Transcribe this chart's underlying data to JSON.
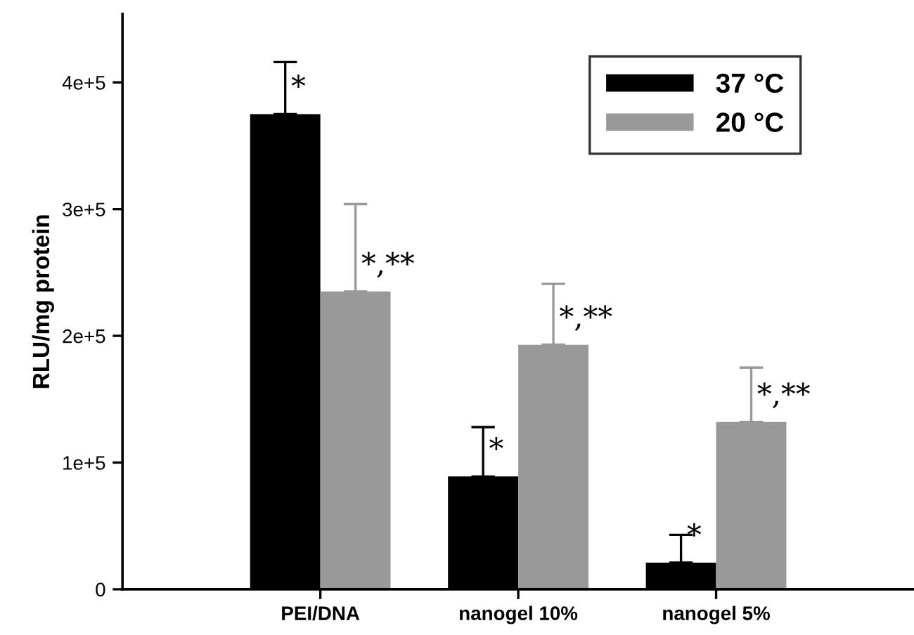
{
  "chart_data": {
    "type": "bar",
    "ylabel": "RLU/mg protein",
    "categories": [
      "PEI/DNA",
      "nanogel 10%",
      "nanogel 5%"
    ],
    "series": [
      {
        "name": "37 °C",
        "color": "#000000",
        "values": [
          375000,
          89000,
          21000
        ],
        "errors": [
          [
            375000,
            416000
          ],
          [
            89000,
            128000
          ],
          [
            21000,
            43000
          ]
        ]
      },
      {
        "name": "20 °C",
        "color": "#999999",
        "values": [
          235000,
          193000,
          132000
        ],
        "errors": [
          [
            235000,
            304000
          ],
          [
            193000,
            241000
          ],
          [
            132000,
            175000
          ]
        ]
      }
    ],
    "ylim": [
      0,
      454000
    ],
    "yticks": [
      {
        "value": 0,
        "label": "0"
      },
      {
        "value": 100000,
        "label": "1e+5"
      },
      {
        "value": 200000,
        "label": "2e+5"
      },
      {
        "value": 300000,
        "label": "3e+5"
      },
      {
        "value": 400000,
        "label": "4e+5"
      }
    ],
    "annotations": [
      {
        "text": "*",
        "x": "PEI/DNA",
        "y": 375000
      },
      {
        "text": "*,**",
        "x": "PEI/DNA",
        "y": 235000
      },
      {
        "text": "*",
        "x": "nanogel 10%",
        "y": 89000
      },
      {
        "text": "*,**",
        "x": "nanogel 10%",
        "y": 193000
      },
      {
        "text": "*",
        "x": "nanogel 5%",
        "y": 21000
      },
      {
        "text": "*,**",
        "x": "nanogel 5%",
        "y": 132000
      }
    ],
    "legend": "top right",
    "grid": false
  }
}
